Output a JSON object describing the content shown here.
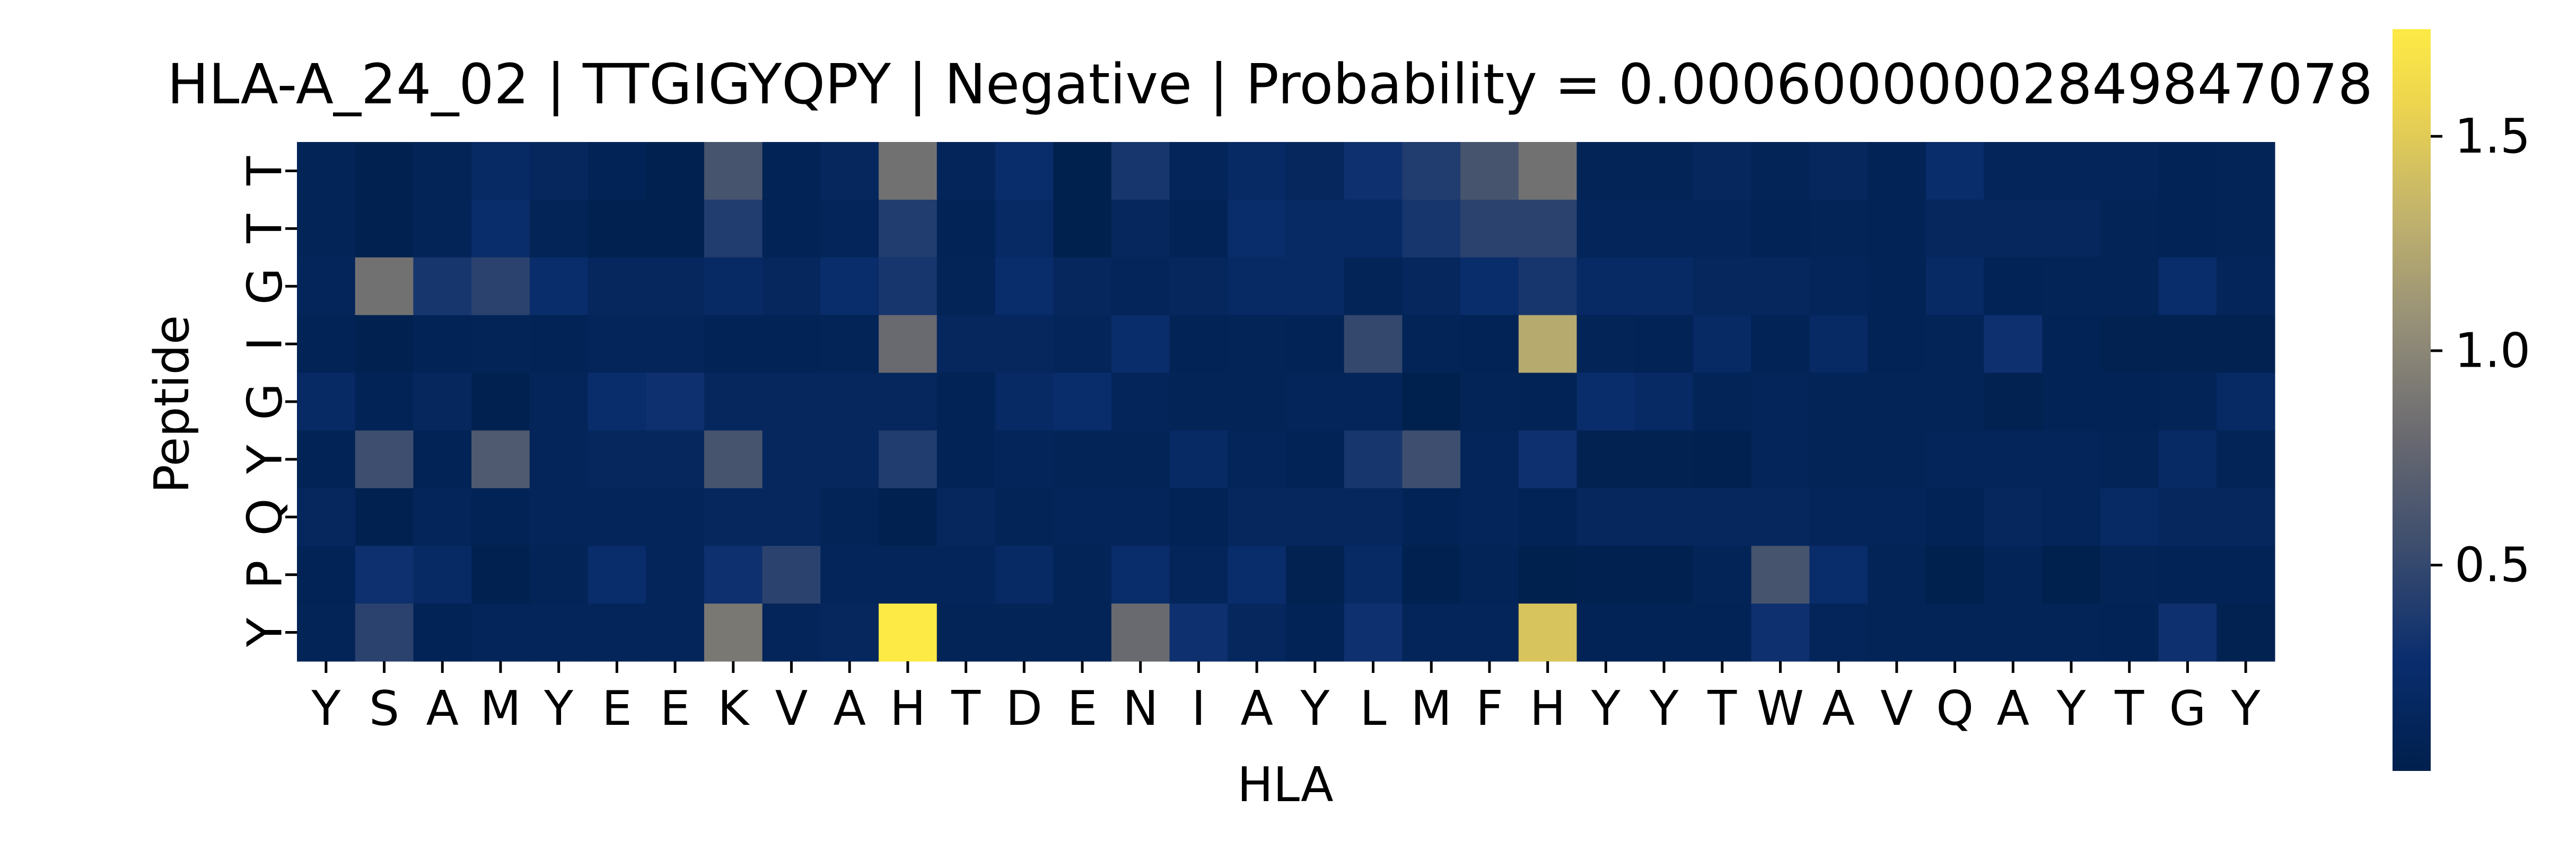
{
  "chart_data": {
    "type": "heatmap",
    "title": "HLA-A_24_02 | TTGIGYQPY | Negative | Probability = 0.00060000002849847078",
    "xlabel": "HLA",
    "ylabel": "Peptide",
    "x_categories": [
      "Y",
      "S",
      "A",
      "M",
      "Y",
      "E",
      "E",
      "K",
      "V",
      "A",
      "H",
      "T",
      "D",
      "E",
      "N",
      "I",
      "A",
      "Y",
      "L",
      "M",
      "F",
      "H",
      "Y",
      "Y",
      "T",
      "W",
      "A",
      "V",
      "Q",
      "A",
      "Y",
      "T",
      "G",
      "Y"
    ],
    "y_categories": [
      "T",
      "T",
      "G",
      "I",
      "G",
      "Y",
      "Q",
      "P",
      "Y"
    ],
    "values": [
      [
        0.1,
        0.05,
        0.1,
        0.2,
        0.15,
        0.08,
        0.05,
        0.6,
        0.08,
        0.15,
        0.85,
        0.12,
        0.25,
        0.02,
        0.35,
        0.12,
        0.2,
        0.15,
        0.3,
        0.4,
        0.6,
        0.85,
        0.1,
        0.1,
        0.15,
        0.1,
        0.15,
        0.08,
        0.25,
        0.12,
        0.12,
        0.12,
        0.08,
        0.1
      ],
      [
        0.1,
        0.05,
        0.1,
        0.25,
        0.1,
        0.05,
        0.05,
        0.4,
        0.08,
        0.12,
        0.4,
        0.08,
        0.2,
        0.03,
        0.15,
        0.08,
        0.25,
        0.2,
        0.2,
        0.35,
        0.45,
        0.45,
        0.12,
        0.12,
        0.12,
        0.08,
        0.1,
        0.08,
        0.15,
        0.15,
        0.15,
        0.1,
        0.08,
        0.1
      ],
      [
        0.12,
        0.85,
        0.35,
        0.45,
        0.25,
        0.15,
        0.15,
        0.2,
        0.15,
        0.25,
        0.35,
        0.1,
        0.25,
        0.15,
        0.12,
        0.15,
        0.2,
        0.2,
        0.1,
        0.15,
        0.25,
        0.35,
        0.2,
        0.2,
        0.15,
        0.15,
        0.12,
        0.08,
        0.2,
        0.08,
        0.1,
        0.1,
        0.25,
        0.12
      ],
      [
        0.08,
        0.05,
        0.08,
        0.1,
        0.08,
        0.12,
        0.12,
        0.08,
        0.08,
        0.1,
        0.8,
        0.15,
        0.15,
        0.12,
        0.25,
        0.08,
        0.1,
        0.08,
        0.5,
        0.1,
        0.08,
        1.25,
        0.1,
        0.08,
        0.2,
        0.08,
        0.2,
        0.08,
        0.1,
        0.3,
        0.08,
        0.06,
        0.06,
        0.06
      ],
      [
        0.2,
        0.08,
        0.15,
        0.05,
        0.12,
        0.25,
        0.3,
        0.15,
        0.15,
        0.15,
        0.15,
        0.08,
        0.2,
        0.25,
        0.12,
        0.1,
        0.1,
        0.12,
        0.12,
        0.03,
        0.1,
        0.08,
        0.25,
        0.2,
        0.1,
        0.12,
        0.1,
        0.1,
        0.1,
        0.06,
        0.08,
        0.08,
        0.1,
        0.2
      ],
      [
        0.08,
        0.55,
        0.08,
        0.65,
        0.12,
        0.15,
        0.15,
        0.6,
        0.15,
        0.15,
        0.4,
        0.08,
        0.12,
        0.1,
        0.1,
        0.2,
        0.12,
        0.08,
        0.35,
        0.55,
        0.12,
        0.3,
        0.06,
        0.06,
        0.05,
        0.12,
        0.1,
        0.1,
        0.12,
        0.12,
        0.12,
        0.1,
        0.2,
        0.1
      ],
      [
        0.15,
        0.05,
        0.12,
        0.08,
        0.12,
        0.12,
        0.12,
        0.15,
        0.15,
        0.1,
        0.05,
        0.15,
        0.1,
        0.12,
        0.12,
        0.08,
        0.15,
        0.15,
        0.15,
        0.08,
        0.12,
        0.08,
        0.15,
        0.15,
        0.15,
        0.15,
        0.12,
        0.12,
        0.08,
        0.15,
        0.12,
        0.2,
        0.15,
        0.15
      ],
      [
        0.08,
        0.3,
        0.2,
        0.04,
        0.1,
        0.25,
        0.12,
        0.3,
        0.45,
        0.12,
        0.12,
        0.12,
        0.2,
        0.1,
        0.25,
        0.12,
        0.25,
        0.06,
        0.2,
        0.05,
        0.1,
        0.03,
        0.04,
        0.04,
        0.1,
        0.6,
        0.25,
        0.1,
        0.03,
        0.1,
        0.03,
        0.1,
        0.08,
        0.08
      ],
      [
        0.1,
        0.45,
        0.08,
        0.12,
        0.12,
        0.12,
        0.12,
        0.9,
        0.12,
        0.15,
        1.75,
        0.1,
        0.1,
        0.1,
        0.8,
        0.3,
        0.15,
        0.08,
        0.3,
        0.12,
        0.12,
        1.45,
        0.08,
        0.08,
        0.08,
        0.3,
        0.12,
        0.1,
        0.1,
        0.1,
        0.1,
        0.08,
        0.3,
        0.06
      ]
    ],
    "colormap": "cividis",
    "vmin": 0.02,
    "vmax": 1.75,
    "colorbar_ticks": [
      0.5,
      1.0,
      1.5
    ],
    "colorbar_tick_labels": [
      "0.5",
      "1.0",
      "1.5"
    ]
  }
}
